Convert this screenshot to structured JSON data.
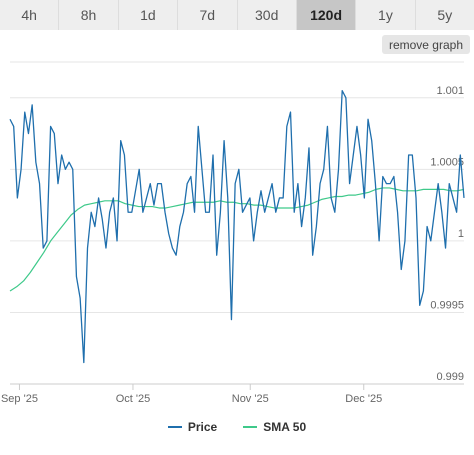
{
  "tabs": [
    {
      "label": "4h"
    },
    {
      "label": "8h"
    },
    {
      "label": "1d"
    },
    {
      "label": "7d"
    },
    {
      "label": "30d"
    },
    {
      "label": "120d",
      "active": true
    },
    {
      "label": "1y"
    },
    {
      "label": "5y"
    }
  ],
  "remove_graph_label": "remove graph",
  "colors": {
    "price": "#1f6fad",
    "sma": "#3ec98a",
    "axis": "#cccccc"
  },
  "chart_data": {
    "type": "line",
    "yticks": [
      {
        "value": 1.001,
        "label": "1.001"
      },
      {
        "value": 1.0005,
        "label": "1.0005"
      },
      {
        "value": 1.0,
        "label": "1"
      },
      {
        "value": 0.9995,
        "label": "0.9995"
      },
      {
        "value": 0.999,
        "label": "0.999"
      }
    ],
    "ylim": [
      0.999,
      1.00125
    ],
    "xticks": [
      {
        "label": "Sep '25",
        "x": 2.5
      },
      {
        "label": "Oct '25",
        "x": 32.5
      },
      {
        "label": "Nov '25",
        "x": 63.5
      },
      {
        "label": "Dec '25",
        "x": 93.5
      }
    ],
    "xlim": [
      0,
      120
    ],
    "legend_position": "bottom",
    "series": [
      {
        "name": "Price",
        "key": "price",
        "values": [
          1.00085,
          1.0008,
          1.0003,
          1.0005,
          1.0009,
          1.00075,
          1.00095,
          1.00055,
          1.0004,
          0.99995,
          1.0,
          1.0008,
          1.00075,
          1.0004,
          1.0006,
          1.0005,
          1.00055,
          1.0005,
          0.99975,
          0.9996,
          0.99915,
          0.99995,
          1.0002,
          1.0001,
          1.0003,
          1.00015,
          0.99995,
          1.0002,
          1.0003,
          1.0,
          1.0007,
          1.0006,
          1.0002,
          1.0002,
          1.00035,
          1.0005,
          1.0002,
          1.0003,
          1.0004,
          1.00025,
          1.0004,
          1.0004,
          1.0002,
          1.00005,
          0.99995,
          0.9999,
          1.0001,
          1.0002,
          1.0004,
          1.00045,
          1.0002,
          1.0008,
          1.0005,
          1.0002,
          1.0002,
          1.0006,
          0.9999,
          1.0002,
          1.0007,
          1.0003,
          0.99945,
          1.0004,
          1.0005,
          1.0002,
          1.00025,
          1.0003,
          1.0,
          1.0002,
          1.00035,
          1.0002,
          1.0003,
          1.0004,
          1.0002,
          1.0003,
          1.0003,
          1.0008,
          1.0009,
          1.0002,
          1.0004,
          1.0001,
          1.0003,
          1.00065,
          0.9999,
          1.0001,
          1.0004,
          1.0005,
          1.0008,
          1.0003,
          1.0002,
          1.0005,
          1.00105,
          1.001,
          1.0004,
          1.0006,
          1.0008,
          1.0006,
          1.0003,
          1.00085,
          1.0007,
          1.0004,
          1.0,
          1.00045,
          1.0004,
          1.0004,
          1.00045,
          1.0002,
          0.9998,
          1.0,
          1.0006,
          1.0006,
          1.0003,
          0.99955,
          0.99965,
          1.0001,
          1.0,
          1.0002,
          1.0004,
          1.0002,
          0.99995,
          1.0004,
          1.0003,
          1.0002,
          1.0006,
          1.0003
        ]
      },
      {
        "name": "SMA 50",
        "key": "sma",
        "values": [
          0.99965,
          0.99968,
          0.99972,
          0.99978,
          0.99985,
          0.99992,
          1.0,
          1.00006,
          1.00012,
          1.00018,
          1.00022,
          1.00025,
          1.00026,
          1.00027,
          1.00028,
          1.00028,
          1.00028,
          1.00026,
          1.00025,
          1.00024,
          1.00024,
          1.00024,
          1.00023,
          1.00023,
          1.00024,
          1.00025,
          1.00026,
          1.00027,
          1.00027,
          1.00027,
          1.00027,
          1.00028,
          1.00027,
          1.00027,
          1.00026,
          1.00026,
          1.00025,
          1.00025,
          1.00024,
          1.00023,
          1.00023,
          1.00023,
          1.00023,
          1.00024,
          1.00025,
          1.00027,
          1.00029,
          1.0003,
          1.00031,
          1.00031,
          1.00032,
          1.00032,
          1.00033,
          1.00034,
          1.00036,
          1.00037,
          1.00037,
          1.00036,
          1.00035,
          1.00035,
          1.00035,
          1.00036,
          1.00036,
          1.00036,
          1.00036,
          1.00035,
          1.00035,
          1.00036
        ]
      }
    ]
  }
}
